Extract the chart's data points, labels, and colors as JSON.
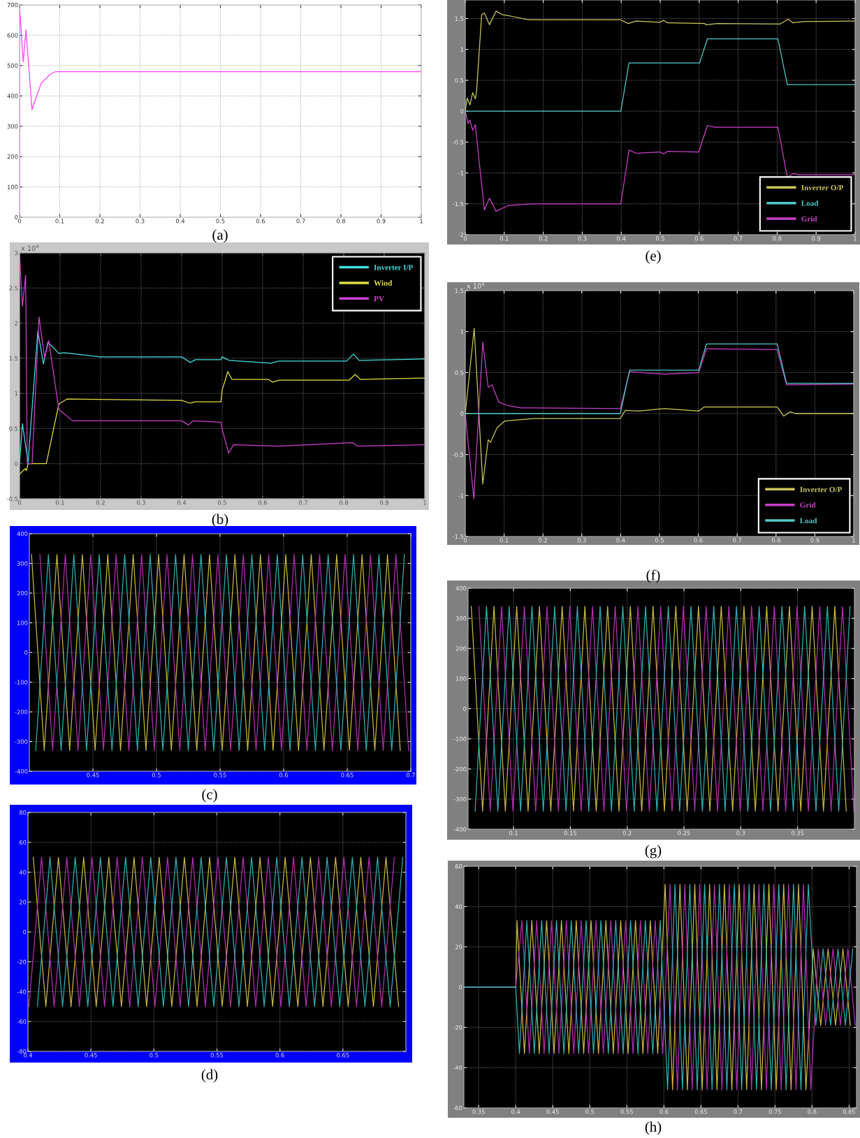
{
  "chart_data": [
    {
      "type": "line",
      "xlim": [
        0,
        1
      ],
      "ylim": [
        0,
        700
      ],
      "xticks": [
        0,
        0.1,
        0.2,
        0.3,
        0.4,
        0.5,
        0.6,
        0.7,
        0.8,
        0.9,
        1
      ],
      "yticks": [
        0,
        100,
        200,
        300,
        400,
        500,
        600,
        700
      ],
      "grid": true,
      "annotations": [
        "(a)"
      ],
      "series": [
        {
          "color": "#ff40ff",
          "x": [
            0,
            0,
            0.009,
            0.016,
            0.031,
            0.054,
            0.077,
            0.09,
            0.41,
            0.42,
            1
          ],
          "values": [
            0,
            700,
            512,
            618,
            355,
            442,
            472,
            480,
            480,
            480,
            480
          ]
        }
      ]
    },
    {
      "type": "line",
      "xlim": [
        0,
        1
      ],
      "ylim": [
        -0.5,
        3
      ],
      "xticks": [
        0,
        0.1,
        0.2,
        0.3,
        0.4,
        0.5,
        0.6,
        0.7,
        0.8,
        0.9,
        1
      ],
      "yticks": [
        -0.5,
        0,
        0.5,
        1,
        1.5,
        2,
        2.5,
        3
      ],
      "grid": true,
      "legend": "top right",
      "annotations": [
        "(b)",
        "x 10$^{4}$"
      ],
      "series": [
        {
          "name": "Inverter I/P",
          "color": "#40e0e0",
          "x": [
            0,
            0.007,
            0.021,
            0.045,
            0.059,
            0.07,
            0.097,
            0.11,
            0.2,
            0.4,
            0.421,
            0.434,
            0.497,
            0.5,
            0.517,
            0.62,
            0.64,
            0.807,
            0.824,
            0.838,
            1
          ],
          "values": [
            0,
            0.57,
            0.01,
            1.89,
            1.42,
            1.73,
            1.57,
            1.58,
            1.52,
            1.52,
            1.44,
            1.48,
            1.48,
            1.52,
            1.47,
            1.43,
            1.46,
            1.46,
            1.56,
            1.47,
            1.49
          ]
        },
        {
          "name": "Wind",
          "color": "#e0e040",
          "x": [
            0,
            0.014,
            0.017,
            0.021,
            0.066,
            0.097,
            0.117,
            0.4,
            0.421,
            0.434,
            0.497,
            0.5,
            0.514,
            0.524,
            0.614,
            0.624,
            0.641,
            0.814,
            0.828,
            0.841,
            1
          ],
          "values": [
            -0.15,
            -0.07,
            -0.1,
            0,
            0,
            0.85,
            0.92,
            0.9,
            0.86,
            0.88,
            0.88,
            1.05,
            1.31,
            1.2,
            1.2,
            1.16,
            1.19,
            1.19,
            1.27,
            1.2,
            1.22
          ]
        },
        {
          "name": "PV",
          "color": "#d040d0",
          "x": [
            0,
            0.007,
            0.015,
            0.019,
            0.031,
            0.048,
            0.062,
            0.072,
            0.097,
            0.131,
            0.4,
            0.417,
            0.428,
            0.497,
            0.5,
            0.516,
            0.528,
            0.64,
            0.821,
            0.834,
            1
          ],
          "values": [
            3.0,
            2.24,
            2.68,
            0,
            0,
            2.09,
            1.5,
            1.75,
            0.77,
            0.61,
            0.61,
            0.55,
            0.61,
            0.59,
            0.49,
            0.15,
            0.27,
            0.25,
            0.3,
            0.25,
            0.27
          ]
        }
      ]
    },
    {
      "type": "line",
      "xlim": [
        0.4,
        0.7
      ],
      "ylim": [
        -400,
        400
      ],
      "xticks": [
        0.45,
        0.5,
        0.55,
        0.6,
        0.65,
        0.7
      ],
      "yticks": [
        -400,
        -300,
        -200,
        -100,
        0,
        100,
        200,
        300,
        400
      ],
      "grid": true,
      "annotations": [
        "(c)"
      ],
      "series": [
        {
          "color": "#c8b840",
          "x": [
            0.4017,
            0.4117,
            0.4217,
            0.4317,
            0.4417,
            0.4517,
            0.4617,
            0.4717,
            0.4817,
            0.4917,
            0.5017,
            0.5117,
            0.5217,
            0.5317,
            0.5417,
            0.5517,
            0.5617,
            0.5717,
            0.5817,
            0.5917,
            0.6017,
            0.6117,
            0.6217,
            0.6317,
            0.6417,
            0.6517,
            0.6617,
            0.6717,
            0.6817,
            0.6917
          ],
          "values": [
            330,
            -330,
            330,
            -330,
            330,
            -330,
            330,
            -330,
            330,
            -330,
            330,
            -330,
            330,
            -330,
            330,
            -330,
            330,
            -330,
            330,
            -330,
            330,
            -330,
            330,
            -330,
            330,
            -330,
            330,
            -330,
            330,
            -330
          ]
        },
        {
          "color": "#b030b0",
          "x": [
            0.4083,
            0.4183,
            0.4283,
            0.4383,
            0.4483,
            0.4583,
            0.4683,
            0.4783,
            0.4883,
            0.4983,
            0.5083,
            0.5183,
            0.5283,
            0.5383,
            0.5483,
            0.5583,
            0.5683,
            0.5783,
            0.5883,
            0.5983,
            0.6083,
            0.6183,
            0.6283,
            0.6383,
            0.6483,
            0.6583,
            0.6683,
            0.6783,
            0.6883,
            0.6983
          ],
          "values": [
            330,
            -330,
            330,
            -330,
            330,
            -330,
            330,
            -330,
            330,
            -330,
            330,
            -330,
            330,
            -330,
            330,
            -330,
            330,
            -330,
            330,
            -330,
            330,
            -330,
            330,
            -330,
            330,
            -330,
            330,
            -330,
            330,
            -330
          ]
        },
        {
          "color": "#30b0b0",
          "x": [
            0.405,
            0.415,
            0.425,
            0.435,
            0.445,
            0.455,
            0.465,
            0.475,
            0.485,
            0.495,
            0.505,
            0.515,
            0.525,
            0.535,
            0.545,
            0.555,
            0.565,
            0.575,
            0.585,
            0.595,
            0.605,
            0.615,
            0.625,
            0.635,
            0.645,
            0.655,
            0.665,
            0.675,
            0.685,
            0.695
          ],
          "values": [
            -330,
            330,
            -330,
            330,
            -330,
            330,
            -330,
            330,
            -330,
            330,
            -330,
            330,
            -330,
            330,
            -330,
            330,
            -330,
            330,
            -330,
            330,
            -330,
            330,
            -330,
            330,
            -330,
            330,
            -330,
            330,
            -330,
            330
          ]
        }
      ]
    },
    {
      "type": "line",
      "xlim": [
        0.4,
        0.7
      ],
      "ylim": [
        -80,
        80
      ],
      "xticks": [
        0.4,
        0.45,
        0.5,
        0.55,
        0.6,
        0.65
      ],
      "yticks": [
        -80,
        -60,
        -40,
        -20,
        0,
        20,
        40,
        60,
        80
      ],
      "grid": true,
      "annotations": [
        "(d)"
      ],
      "series": [
        {
          "color": "#c8b840",
          "x": [
            0.4042,
            0.4142,
            0.4242,
            0.4342,
            0.4442,
            0.4542,
            0.4642,
            0.4742,
            0.4842,
            0.4942,
            0.5042,
            0.5142,
            0.5242,
            0.5342,
            0.5442,
            0.5542,
            0.5642,
            0.5742,
            0.5842,
            0.5942,
            0.6042,
            0.6142,
            0.6242,
            0.6342,
            0.6442,
            0.6542,
            0.6642,
            0.6742,
            0.6842,
            0.6942
          ],
          "values": [
            50,
            -50,
            50,
            -50,
            50,
            -50,
            50,
            -50,
            50,
            -50,
            50,
            -50,
            50,
            -50,
            50,
            -50,
            50,
            -50,
            50,
            -50,
            50,
            -50,
            50,
            -50,
            50,
            -50,
            50,
            -50,
            50,
            -50
          ]
        },
        {
          "color": "#b030b0",
          "x": [
            0.4008,
            0.4108,
            0.4208,
            0.4308,
            0.4408,
            0.4508,
            0.4608,
            0.4708,
            0.4808,
            0.4908,
            0.5008,
            0.5108,
            0.5208,
            0.5308,
            0.5408,
            0.5508,
            0.5608,
            0.5708,
            0.5808,
            0.5908,
            0.6008,
            0.6108,
            0.6208,
            0.6308,
            0.6408,
            0.6508,
            0.6608,
            0.6708,
            0.6808,
            0.6908
          ],
          "values": [
            -50,
            50,
            -50,
            50,
            -50,
            50,
            -50,
            50,
            -50,
            50,
            -50,
            50,
            -50,
            50,
            -50,
            50,
            -50,
            50,
            -50,
            50,
            -50,
            50,
            -50,
            50,
            -50,
            50,
            -50,
            50,
            -50,
            50
          ]
        },
        {
          "color": "#30b0b0",
          "x": [
            0.4075,
            0.4175,
            0.4275,
            0.4375,
            0.4475,
            0.4575,
            0.4675,
            0.4775,
            0.4875,
            0.4975,
            0.5075,
            0.5175,
            0.5275,
            0.5375,
            0.5475,
            0.5575,
            0.5675,
            0.5775,
            0.5875,
            0.5975,
            0.6075,
            0.6175,
            0.6275,
            0.6375,
            0.6475,
            0.6575,
            0.6675,
            0.6775,
            0.6875,
            0.6975
          ],
          "values": [
            -50,
            50,
            -50,
            50,
            -50,
            50,
            -50,
            50,
            -50,
            50,
            -50,
            50,
            -50,
            50,
            -50,
            50,
            -50,
            50,
            -50,
            50,
            -50,
            50,
            -50,
            50,
            -50,
            50,
            -50,
            50,
            -50,
            50
          ]
        }
      ]
    },
    {
      "type": "line",
      "xlim": [
        0,
        1
      ],
      "ylim": [
        -2,
        1.8
      ],
      "xticks": [
        0,
        0.1,
        0.2,
        0.3,
        0.4,
        0.5,
        0.6,
        0.7,
        0.8,
        0.9,
        1
      ],
      "yticks": [
        -2,
        -1.5,
        -1,
        -0.5,
        0,
        0.5,
        1,
        1.5
      ],
      "grid": true,
      "legend": "bottom right",
      "annotations": [
        "(e)"
      ],
      "series": [
        {
          "name": "Inverter O/P",
          "color": "#c8c85a",
          "x": [
            0,
            0.005,
            0.012,
            0.019,
            0.026,
            0.029,
            0.042,
            0.049,
            0.062,
            0.079,
            0.096,
            0.116,
            0.163,
            0.398,
            0.418,
            0.438,
            0.499,
            0.509,
            0.519,
            0.613,
            0.619,
            0.646,
            0.807,
            0.828,
            0.841,
            0.868,
            1
          ],
          "values": [
            0,
            0.21,
            0.1,
            0.3,
            0.2,
            0.32,
            1.56,
            1.59,
            1.4,
            1.62,
            1.56,
            1.54,
            1.48,
            1.48,
            1.42,
            1.46,
            1.44,
            1.47,
            1.43,
            1.42,
            1.4,
            1.42,
            1.41,
            1.49,
            1.43,
            1.45,
            1.46
          ]
        },
        {
          "name": "Load",
          "color": "#50c8c8",
          "x": [
            0,
            0.399,
            0.42,
            0.601,
            0.621,
            0.802,
            0.826,
            1
          ],
          "values": [
            0,
            0,
            0.78,
            0.78,
            1.17,
            1.17,
            0.43,
            0.43
          ]
        },
        {
          "name": "Grid",
          "color": "#c840c8",
          "x": [
            0,
            0.007,
            0.012,
            0.019,
            0.026,
            0.032,
            0.049,
            0.062,
            0.079,
            0.109,
            0.17,
            0.399,
            0.42,
            0.438,
            0.499,
            0.509,
            0.519,
            0.599,
            0.621,
            0.64,
            0.802,
            0.826,
            0.841,
            0.854,
            1
          ],
          "values": [
            0,
            -0.2,
            -0.14,
            -0.31,
            -0.22,
            -0.6,
            -1.6,
            -1.41,
            -1.62,
            -1.53,
            -1.5,
            -1.5,
            -0.63,
            -0.68,
            -0.66,
            -0.69,
            -0.65,
            -0.66,
            -0.23,
            -0.26,
            -0.26,
            -1.07,
            -1.01,
            -1.03,
            -1.03
          ]
        }
      ]
    },
    {
      "type": "line",
      "xlim": [
        0,
        1
      ],
      "ylim": [
        -1.5,
        1.5
      ],
      "xticks": [
        0,
        0.1,
        0.2,
        0.3,
        0.4,
        0.5,
        0.6,
        0.7,
        0.8,
        0.9,
        1
      ],
      "yticks": [
        -1.5,
        -1,
        -0.5,
        0,
        0.5,
        1,
        1.5
      ],
      "grid": true,
      "legend": "bottom right",
      "annotations": [
        "(f)",
        "x 10$^{4}$"
      ],
      "series": [
        {
          "name": "Inverter O/P",
          "color": "#c8c85a",
          "x": [
            0,
            0.023,
            0.045,
            0.059,
            0.065,
            0.082,
            0.102,
            0.177,
            0.399,
            0.412,
            0.446,
            0.513,
            0.601,
            0.615,
            0.803,
            0.82,
            0.837,
            0.85,
            1
          ],
          "values": [
            0,
            1.04,
            -0.86,
            -0.32,
            -0.35,
            -0.17,
            -0.09,
            -0.06,
            -0.06,
            0.04,
            0.03,
            0.06,
            0.03,
            0.08,
            0.08,
            -0.03,
            0.02,
            0,
            0
          ]
        },
        {
          "name": "Grid",
          "color": "#c840c8",
          "x": [
            0,
            0.022,
            0.045,
            0.059,
            0.069,
            0.086,
            0.109,
            0.143,
            0.399,
            0.423,
            0.513,
            0.601,
            0.621,
            0.803,
            0.827,
            1
          ],
          "values": [
            0,
            -1.04,
            0.87,
            0.32,
            0.35,
            0.14,
            0.1,
            0.07,
            0.06,
            0.51,
            0.48,
            0.5,
            0.79,
            0.78,
            0.35,
            0.36
          ]
        },
        {
          "name": "Load",
          "color": "#50c8c8",
          "x": [
            0,
            0.399,
            0.423,
            0.601,
            0.621,
            0.803,
            0.827,
            1
          ],
          "values": [
            0,
            0,
            0.53,
            0.53,
            0.85,
            0.85,
            0.37,
            0.37
          ]
        }
      ]
    },
    {
      "type": "line",
      "xlim": [
        0.06,
        0.4
      ],
      "ylim": [
        -400,
        400
      ],
      "xticks": [
        0.1,
        0.15,
        0.2,
        0.25,
        0.3,
        0.35
      ],
      "yticks": [
        -400,
        -300,
        -200,
        -100,
        0,
        100,
        200,
        300,
        400
      ],
      "grid": true,
      "annotations": [
        "(g)"
      ],
      "series": [
        {
          "color": "#c8b840",
          "x": [
            0.0628,
            0.0728,
            0.0828,
            0.0928,
            0.1028,
            0.1128,
            0.1228,
            0.1328,
            0.1428,
            0.1528,
            0.1628,
            0.1728,
            0.1828,
            0.1928,
            0.2028,
            0.2128,
            0.2228,
            0.2328,
            0.2428,
            0.2528,
            0.2628,
            0.2728,
            0.2828,
            0.2928,
            0.3028,
            0.3128,
            0.3228,
            0.3328,
            0.3428,
            0.3528,
            0.3628,
            0.3728,
            0.3828,
            0.3928
          ],
          "values": [
            340,
            -340,
            340,
            -340,
            340,
            -340,
            340,
            -340,
            340,
            -340,
            340,
            -340,
            340,
            -340,
            340,
            -340,
            340,
            -340,
            340,
            -340,
            340,
            -340,
            340,
            -340,
            340,
            -340,
            340,
            -340,
            340,
            -340,
            340,
            -340,
            340,
            -340
          ]
        },
        {
          "color": "#b030b0",
          "x": [
            0.0695,
            0.0795,
            0.0895,
            0.0995,
            0.1095,
            0.1195,
            0.1295,
            0.1395,
            0.1495,
            0.1595,
            0.1695,
            0.1795,
            0.1895,
            0.1995,
            0.2095,
            0.2195,
            0.2295,
            0.2395,
            0.2495,
            0.2595,
            0.2695,
            0.2795,
            0.2895,
            0.2995,
            0.3095,
            0.3195,
            0.3295,
            0.3395,
            0.3495,
            0.3595,
            0.3695,
            0.3795,
            0.3895,
            0.3995
          ],
          "values": [
            340,
            -340,
            340,
            -340,
            340,
            -340,
            340,
            -340,
            340,
            -340,
            340,
            -340,
            340,
            -340,
            340,
            -340,
            340,
            -340,
            340,
            -340,
            340,
            -340,
            340,
            -340,
            340,
            -340,
            340,
            -340,
            340,
            -340,
            340,
            -340,
            340,
            -340
          ]
        },
        {
          "color": "#30b0b0",
          "x": [
            0.0662,
            0.0762,
            0.0862,
            0.0962,
            0.1062,
            0.1162,
            0.1262,
            0.1362,
            0.1462,
            0.1562,
            0.1662,
            0.1762,
            0.1862,
            0.1962,
            0.2062,
            0.2162,
            0.2262,
            0.2362,
            0.2462,
            0.2562,
            0.2662,
            0.2762,
            0.2862,
            0.2962,
            0.3062,
            0.3162,
            0.3262,
            0.3362,
            0.3462,
            0.3562,
            0.3662,
            0.3762,
            0.3862,
            0.3962
          ],
          "values": [
            -340,
            340,
            -340,
            340,
            -340,
            340,
            -340,
            340,
            -340,
            340,
            -340,
            340,
            -340,
            340,
            -340,
            340,
            -340,
            340,
            -340,
            340,
            -340,
            340,
            -340,
            340,
            -340,
            340,
            -340,
            340,
            -340,
            340,
            -340,
            340,
            -340,
            340
          ]
        }
      ]
    },
    {
      "type": "line",
      "xlim": [
        0.33,
        0.86
      ],
      "ylim": [
        -60,
        60
      ],
      "xticks": [
        0.35,
        0.4,
        0.45,
        0.5,
        0.55,
        0.6,
        0.65,
        0.7,
        0.75,
        0.8,
        0.85
      ],
      "yticks": [
        -60,
        -40,
        -20,
        0,
        20,
        40,
        60
      ],
      "grid": true,
      "annotations": [
        "(h)"
      ],
      "series": [
        {
          "color": "#c8b840",
          "x": [
            0.33,
            0.4,
            0.4017,
            0.4117,
            0.4217,
            0.4317,
            0.4417,
            0.4517,
            0.4617,
            0.4717,
            0.4817,
            0.4917,
            0.5017,
            0.5117,
            0.5217,
            0.5317,
            0.5417,
            0.5517,
            0.5617,
            0.5717,
            0.5817,
            0.5917,
            0.6017,
            0.6117,
            0.6217,
            0.6317,
            0.6417,
            0.6517,
            0.6617,
            0.6717,
            0.6817,
            0.6917,
            0.7017,
            0.7117,
            0.7217,
            0.7317,
            0.7417,
            0.7517,
            0.7617,
            0.7717,
            0.7817,
            0.7917,
            0.8017,
            0.8117,
            0.8217,
            0.8317,
            0.8417,
            0.8517
          ],
          "values": [
            0,
            0,
            33,
            -33,
            33,
            -33,
            33,
            -33,
            33,
            -33,
            33,
            -33,
            33,
            -33,
            33,
            -33,
            33,
            -33,
            33,
            -33,
            33,
            -33,
            51,
            -51,
            51,
            -51,
            51,
            -51,
            51,
            -51,
            51,
            -51,
            51,
            -51,
            51,
            -51,
            51,
            -51,
            51,
            -51,
            51,
            -51,
            19,
            -19,
            19,
            -19,
            19,
            -19
          ]
        },
        {
          "color": "#b030b0",
          "x": [
            0.33,
            0.4,
            0.4083,
            0.4183,
            0.4283,
            0.4383,
            0.4483,
            0.4583,
            0.4683,
            0.4783,
            0.4883,
            0.4983,
            0.5083,
            0.5183,
            0.5283,
            0.5383,
            0.5483,
            0.5583,
            0.5683,
            0.5783,
            0.5883,
            0.5983,
            0.6083,
            0.6183,
            0.6283,
            0.6383,
            0.6483,
            0.6583,
            0.6683,
            0.6783,
            0.6883,
            0.6983,
            0.7083,
            0.7183,
            0.7283,
            0.7383,
            0.7483,
            0.7583,
            0.7683,
            0.7783,
            0.7883,
            0.7983,
            0.8083,
            0.8183,
            0.8283,
            0.8383,
            0.8483,
            0.8583
          ],
          "values": [
            0,
            0,
            33,
            -33,
            33,
            -33,
            33,
            -33,
            33,
            -33,
            33,
            -33,
            33,
            -33,
            33,
            -33,
            33,
            -33,
            33,
            -33,
            33,
            -33,
            51,
            -51,
            51,
            -51,
            51,
            -51,
            51,
            -51,
            51,
            -51,
            51,
            -51,
            51,
            -51,
            51,
            -51,
            51,
            -51,
            51,
            -51,
            19,
            -19,
            19,
            -19,
            19,
            -19
          ]
        },
        {
          "color": "#30b0b0",
          "x": [
            0.33,
            0.4,
            0.405,
            0.415,
            0.425,
            0.435,
            0.445,
            0.455,
            0.465,
            0.475,
            0.485,
            0.495,
            0.505,
            0.515,
            0.525,
            0.535,
            0.545,
            0.555,
            0.565,
            0.575,
            0.585,
            0.595,
            0.605,
            0.615,
            0.625,
            0.635,
            0.645,
            0.655,
            0.665,
            0.675,
            0.685,
            0.695,
            0.705,
            0.715,
            0.725,
            0.735,
            0.745,
            0.755,
            0.765,
            0.775,
            0.785,
            0.795,
            0.805,
            0.815,
            0.825,
            0.835,
            0.845,
            0.855
          ],
          "values": [
            0,
            0,
            -33,
            33,
            -33,
            33,
            -33,
            33,
            -33,
            33,
            -33,
            33,
            -33,
            33,
            -33,
            33,
            -33,
            33,
            -33,
            33,
            -33,
            33,
            -51,
            51,
            -51,
            51,
            -51,
            51,
            -51,
            51,
            -51,
            51,
            -51,
            51,
            -51,
            51,
            -51,
            51,
            -51,
            51,
            -51,
            51,
            -19,
            19,
            -19,
            19,
            -19,
            19
          ]
        }
      ]
    }
  ]
}
